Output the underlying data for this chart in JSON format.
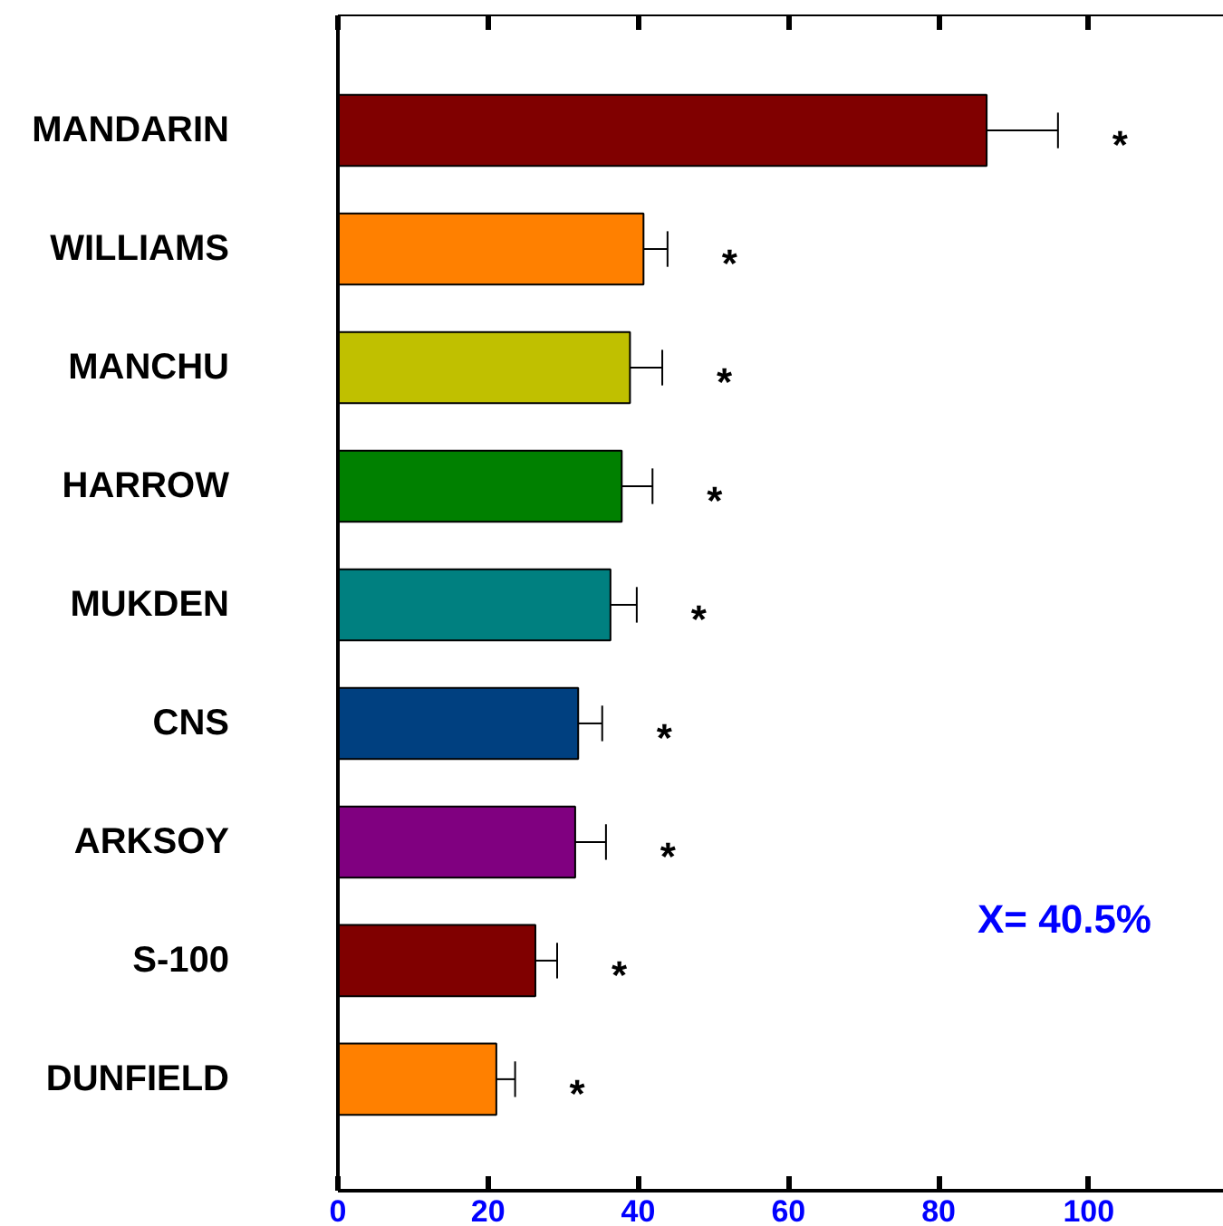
{
  "chart_data": {
    "type": "bar",
    "orientation": "horizontal",
    "categories": [
      "MANDARIN",
      "WILLIAMS",
      "MANCHU",
      "HARROW",
      "MUKDEN",
      "CNS",
      "ARKSOY",
      "S-100",
      "DUNFIELD"
    ],
    "values": [
      86.4,
      40.7,
      38.9,
      37.8,
      36.3,
      32.0,
      31.6,
      26.3,
      21.1
    ],
    "errors": [
      9.5,
      3.2,
      4.3,
      4.1,
      3.5,
      3.2,
      4.1,
      2.9,
      2.5
    ],
    "colors": [
      "#800000",
      "#ff8000",
      "#c0c000",
      "#008000",
      "#008080",
      "#004080",
      "#800080",
      "#800000",
      "#ff8000"
    ],
    "xlim": [
      0,
      118
    ],
    "xticks": [
      0,
      20,
      40,
      60,
      80,
      100
    ],
    "grid": false,
    "annotations": [
      "*",
      "*",
      "*",
      "*",
      "*",
      "*",
      "*",
      "*",
      "*",
      "X= 40.5%"
    ]
  }
}
